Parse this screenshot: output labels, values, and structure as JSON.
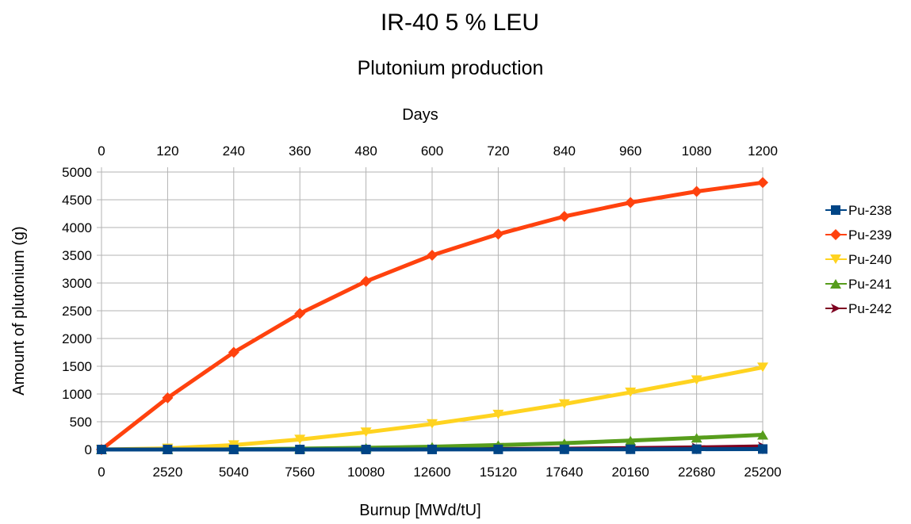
{
  "chart_data": {
    "type": "line",
    "title": "IR-40 5 % LEU",
    "subtitle": "Plutonium production",
    "xlabel": "Burnup [MWd/tU]",
    "x2label": "Days",
    "ylabel": "Amount of plutonium (g)",
    "x": [
      0,
      2520,
      5040,
      7560,
      10080,
      12600,
      15120,
      17640,
      20160,
      22680,
      25200
    ],
    "x2": [
      0,
      120,
      240,
      360,
      480,
      600,
      720,
      840,
      960,
      1080,
      1200
    ],
    "xlim": [
      0,
      25200
    ],
    "ylim": [
      0,
      5000
    ],
    "yticks": [
      0,
      500,
      1000,
      1500,
      2000,
      2500,
      3000,
      3500,
      4000,
      4500,
      5000
    ],
    "grid": true,
    "legend_position": "right",
    "series": [
      {
        "name": "Pu-238",
        "color": "#004586",
        "marker": "square",
        "values": [
          0,
          0,
          0,
          0,
          0,
          1,
          2,
          3,
          4,
          6,
          8
        ]
      },
      {
        "name": "Pu-239",
        "color": "#ff420e",
        "marker": "diamond",
        "values": [
          0,
          930,
          1750,
          2450,
          3030,
          3500,
          3880,
          4200,
          4450,
          4650,
          4810
        ]
      },
      {
        "name": "Pu-240",
        "color": "#ffd320",
        "marker": "triangle-down",
        "values": [
          0,
          20,
          80,
          180,
          310,
          460,
          630,
          820,
          1030,
          1250,
          1480
        ]
      },
      {
        "name": "Pu-241",
        "color": "#579d1c",
        "marker": "triangle-up",
        "values": [
          0,
          0,
          5,
          15,
          30,
          50,
          80,
          115,
          160,
          210,
          265
        ]
      },
      {
        "name": "Pu-242",
        "color": "#7e0021",
        "marker": "arrow-right",
        "values": [
          0,
          0,
          0,
          1,
          2,
          5,
          9,
          15,
          25,
          38,
          55
        ]
      }
    ]
  }
}
